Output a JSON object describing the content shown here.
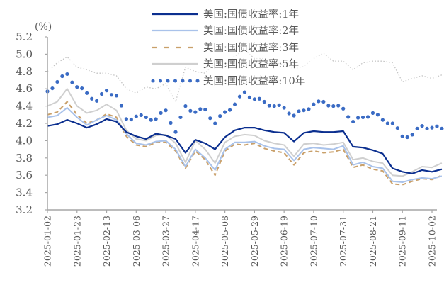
{
  "chart_data": {
    "type": "line",
    "unit_label": "(%)",
    "ylim": [
      3.2,
      5.2
    ],
    "yticks": [
      "3.2",
      "3.4",
      "3.6",
      "3.8",
      "4.0",
      "4.2",
      "4.4",
      "4.6",
      "4.8",
      "5.0",
      "5.2"
    ],
    "xtick_labels": [
      "2025-01-02",
      "2025-01-23",
      "2025-02-13",
      "2025-03-06",
      "2025-03-27",
      "2025-04-17",
      "2025-05-08",
      "2025-05-29",
      "2025-06-19",
      "2025-07-10",
      "2025-07-31",
      "2025-08-21",
      "2025-09-11",
      "2025-10-02"
    ],
    "grid": false,
    "legend_placement": "top-center",
    "x": [
      "2025-01-02",
      "2025-01-09",
      "2025-01-16",
      "2025-01-23",
      "2025-01-30",
      "2025-02-06",
      "2025-02-13",
      "2025-02-20",
      "2025-02-27",
      "2025-03-06",
      "2025-03-13",
      "2025-03-20",
      "2025-03-27",
      "2025-04-03",
      "2025-04-10",
      "2025-04-17",
      "2025-04-24",
      "2025-05-01",
      "2025-05-08",
      "2025-05-15",
      "2025-05-22",
      "2025-05-29",
      "2025-06-05",
      "2025-06-12",
      "2025-06-19",
      "2025-06-26",
      "2025-07-03",
      "2025-07-10",
      "2025-07-17",
      "2025-07-24",
      "2025-07-31",
      "2025-08-07",
      "2025-08-14",
      "2025-08-21",
      "2025-08-28",
      "2025-09-04",
      "2025-09-11",
      "2025-09-18",
      "2025-09-25",
      "2025-10-02",
      "2025-10-09"
    ],
    "series": [
      {
        "name": "美国:国债收益率:1年",
        "color": "#0b2f8f",
        "style": "solid",
        "values": [
          4.17,
          4.19,
          4.24,
          4.2,
          4.15,
          4.19,
          4.25,
          4.22,
          4.1,
          4.05,
          4.02,
          4.08,
          4.06,
          4.02,
          3.86,
          4.01,
          3.97,
          3.9,
          4.04,
          4.12,
          4.15,
          4.15,
          4.12,
          4.1,
          4.09,
          3.99,
          4.09,
          4.11,
          4.1,
          4.1,
          4.11,
          3.93,
          3.92,
          3.89,
          3.85,
          3.68,
          3.64,
          3.62,
          3.66,
          3.64,
          3.67
        ]
      },
      {
        "name": "美国:国债收益率:2年",
        "color": "#a9c2ea",
        "style": "solid",
        "values": [
          4.27,
          4.29,
          4.38,
          4.27,
          4.18,
          4.24,
          4.29,
          4.24,
          4.08,
          3.97,
          3.95,
          3.99,
          4.0,
          3.9,
          3.7,
          3.9,
          3.8,
          3.66,
          3.9,
          3.98,
          3.98,
          3.99,
          3.94,
          3.91,
          3.9,
          3.77,
          3.9,
          3.92,
          3.91,
          3.9,
          3.94,
          3.72,
          3.75,
          3.7,
          3.68,
          3.53,
          3.52,
          3.55,
          3.57,
          3.56,
          3.59
        ]
      },
      {
        "name": "美国:国债收益率:3年",
        "color": "#c9a06a",
        "style": "dashed",
        "values": [
          4.3,
          4.33,
          4.45,
          4.3,
          4.2,
          4.24,
          4.31,
          4.27,
          4.05,
          3.95,
          3.93,
          3.98,
          3.98,
          3.88,
          3.68,
          3.88,
          3.78,
          3.6,
          3.88,
          3.96,
          3.95,
          3.97,
          3.91,
          3.88,
          3.86,
          3.72,
          3.86,
          3.88,
          3.86,
          3.87,
          3.9,
          3.69,
          3.72,
          3.67,
          3.65,
          3.5,
          3.49,
          3.53,
          3.56,
          3.55,
          3.6
        ]
      },
      {
        "name": "美国:国债收益率:5年",
        "color": "#cfcfcf",
        "style": "solid",
        "values": [
          4.4,
          4.45,
          4.6,
          4.4,
          4.32,
          4.35,
          4.42,
          4.35,
          4.12,
          4.02,
          4.0,
          4.06,
          4.07,
          3.97,
          3.75,
          4.0,
          3.9,
          3.74,
          3.98,
          4.05,
          4.07,
          4.06,
          4.0,
          3.97,
          3.95,
          3.82,
          3.96,
          3.97,
          3.95,
          3.96,
          3.98,
          3.78,
          3.8,
          3.76,
          3.74,
          3.6,
          3.59,
          3.64,
          3.7,
          3.69,
          3.74
        ]
      },
      {
        "name": "美国:国债收益率:10年",
        "color": "#3a6bc4",
        "style": "dots",
        "values": [
          4.57,
          4.68,
          4.77,
          4.62,
          4.55,
          4.46,
          4.58,
          4.52,
          4.25,
          4.28,
          4.27,
          4.25,
          4.35,
          4.1,
          4.4,
          4.33,
          4.36,
          4.2,
          4.33,
          4.42,
          4.56,
          4.48,
          4.45,
          4.4,
          4.38,
          4.29,
          4.35,
          4.42,
          4.45,
          4.4,
          4.37,
          4.22,
          4.27,
          4.32,
          4.24,
          4.2,
          4.05,
          4.07,
          4.17,
          4.15,
          4.14
        ]
      },
      {
        "color": "#c4c4c4",
        "style": "dotted-thin",
        "values": [
          4.8,
          4.9,
          4.97,
          4.85,
          4.82,
          4.78,
          4.78,
          4.75,
          4.6,
          4.55,
          4.62,
          4.6,
          4.66,
          4.45,
          4.85,
          4.8,
          4.78,
          4.9,
          4.85,
          4.98,
          5.05,
          4.95,
          4.95,
          4.9,
          4.88,
          4.83,
          4.86,
          4.95,
          5.01,
          4.92,
          4.92,
          4.82,
          4.9,
          4.92,
          4.92,
          4.9,
          4.68,
          4.72,
          4.75,
          4.72,
          4.76
        ]
      }
    ]
  }
}
